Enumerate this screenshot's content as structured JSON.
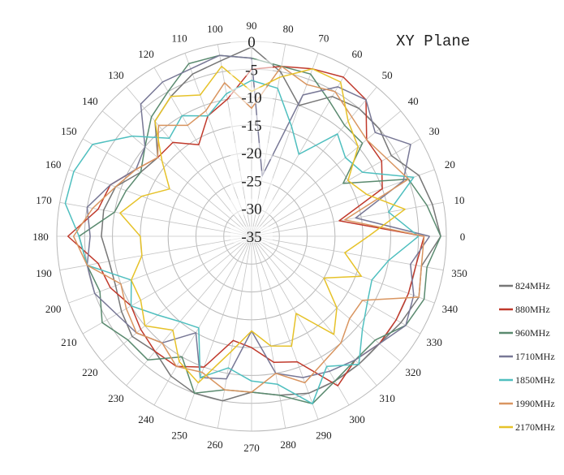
{
  "chart_data": {
    "type": "line",
    "subtype": "polar",
    "title": "XY Plane",
    "angular_ticks": [
      0,
      10,
      20,
      30,
      40,
      50,
      60,
      70,
      80,
      90,
      100,
      110,
      120,
      130,
      140,
      150,
      160,
      170,
      180,
      190,
      200,
      210,
      220,
      230,
      240,
      250,
      260,
      270,
      280,
      290,
      300,
      310,
      320,
      330,
      340,
      350
    ],
    "radial_ticks": [
      0,
      -5,
      -10,
      -15,
      -20,
      -25,
      -30,
      -35
    ],
    "rlim": [
      -35,
      0
    ],
    "angle_step": 10,
    "grid": true,
    "legend_position": "bottom-right",
    "series": [
      {
        "name": "824MHz",
        "color": "#777777",
        "values": [
          -1,
          -2,
          -3,
          -6,
          -5,
          -5,
          -6,
          -10,
          -5,
          -1,
          -3,
          -4,
          -6,
          -8,
          -13,
          -12,
          -9,
          -8,
          -8,
          -9,
          -9,
          -8,
          -7,
          -8,
          -6,
          -5,
          -5,
          -7,
          -6,
          -5,
          -5,
          -5,
          -5,
          -4,
          -3,
          -4
        ]
      },
      {
        "name": "880MHz",
        "color": "#c0392b",
        "values": [
          -4,
          -19,
          -10,
          -8,
          -8,
          -3,
          -2,
          -3,
          -4,
          -5,
          -10,
          -12,
          -16,
          -13,
          -13,
          -11,
          -8,
          -7,
          -2,
          -7,
          -8,
          -10,
          -9,
          -8,
          -8,
          -10,
          -16,
          -15,
          -12,
          -11,
          -4,
          -6,
          -5,
          -5,
          -5,
          -5
        ]
      },
      {
        "name": "960MHz",
        "color": "#5a8a6f",
        "values": [
          -1,
          -3,
          -5,
          -16,
          -9,
          -9,
          -7,
          -4,
          -4,
          -3,
          -2,
          -2,
          -5,
          -7,
          -10,
          -12,
          -11,
          -10,
          -4,
          -5,
          -6,
          -4,
          -6,
          -6,
          -10,
          -5,
          -7,
          -7,
          -6,
          -3,
          -5,
          -6,
          -6,
          -3,
          -2,
          -3
        ]
      },
      {
        "name": "1710MHz",
        "color": "#787896",
        "values": [
          -3,
          -16,
          -6,
          -2,
          -6,
          -3,
          -4,
          -8,
          -24,
          -3,
          -2,
          -3,
          -3,
          -4,
          -10,
          -11,
          -8,
          -5,
          -6,
          -5,
          -5,
          -7,
          -8,
          -10,
          -15,
          -8,
          -9,
          -18,
          -10,
          -8,
          -7,
          -6,
          -5,
          -3,
          -4,
          -6
        ]
      },
      {
        "name": "1850MHz",
        "color": "#4fbfbf",
        "values": [
          -5,
          -10,
          -4,
          -12,
          -13,
          -11,
          -18,
          -14,
          -8,
          -7,
          -9,
          -12,
          -10,
          -12,
          -7,
          -2,
          -1,
          -1,
          -4,
          -5,
          -12,
          -10,
          -13,
          -15,
          -16,
          -8,
          -11,
          -9,
          -8,
          -3,
          -8,
          -5,
          -9,
          -11,
          -12,
          -10
        ]
      },
      {
        "name": "1990MHz",
        "color": "#d99560",
        "values": [
          -4,
          -18,
          -5,
          -7,
          -8,
          -7,
          -5,
          -6,
          -4,
          -12,
          -7,
          -11,
          -12,
          -9,
          -13,
          -11,
          -9,
          -6,
          -3,
          -5,
          -10,
          -9,
          -8,
          -10,
          -8,
          -9,
          -7,
          -7,
          -10,
          -7,
          -9,
          -10,
          -12,
          -12,
          -3,
          -4
        ]
      },
      {
        "name": "2170MHz",
        "color": "#e6c229",
        "values": [
          -14,
          -7,
          -13,
          -15,
          -10,
          -8,
          -3,
          -3,
          -6,
          -9,
          -4,
          -8,
          -6,
          -8,
          -14,
          -18,
          -14,
          -11,
          -15,
          -15,
          -12,
          -12,
          -10,
          -13,
          -9,
          -7,
          -14,
          -18,
          -15,
          -14,
          -19,
          -12,
          -15,
          -20,
          -14,
          -18
        ]
      }
    ]
  }
}
